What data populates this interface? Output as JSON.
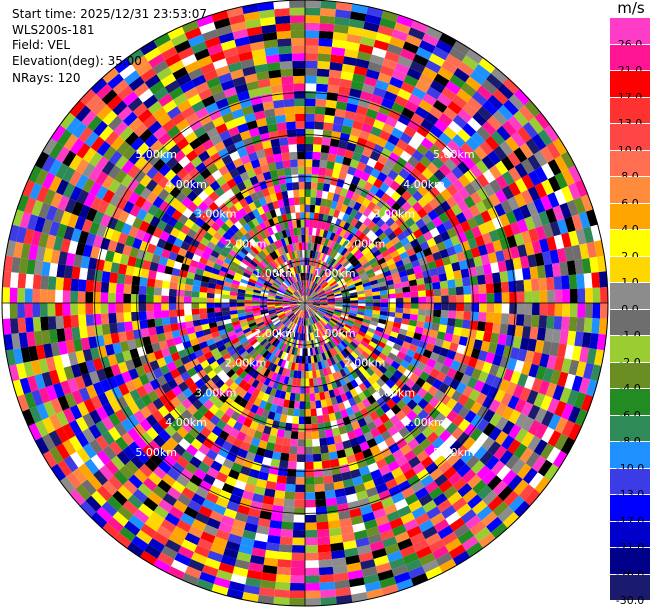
{
  "header": {
    "start_time": "Start time: 2025/12/31 23:53:07",
    "station": "WLS200s-181",
    "field": "Field: VEL",
    "elevation": "Elevation(deg): 35.00",
    "nrays": "NRays: 120"
  },
  "colorbar": {
    "unit": "m/s",
    "bins": [
      {
        "label": "26.0",
        "color": "#FF3CC8"
      },
      {
        "label": "21.0",
        "color": "#FF1493"
      },
      {
        "label": "17.0",
        "color": "#FF0000"
      },
      {
        "label": "13.0",
        "color": "#FF3232"
      },
      {
        "label": "10.0",
        "color": "#FF4646"
      },
      {
        "label": "8.0",
        "color": "#FF6E50"
      },
      {
        "label": "6.0",
        "color": "#FF8C3C"
      },
      {
        "label": "4.0",
        "color": "#FFA500"
      },
      {
        "label": "2.0",
        "color": "#FFFF00"
      },
      {
        "label": "1.0",
        "color": "#FFD700"
      },
      {
        "label": "0.0",
        "color": "#8C8C8C"
      },
      {
        "label": "-1.0",
        "color": "#6E6E6E"
      },
      {
        "label": "-2.0",
        "color": "#9ACD32"
      },
      {
        "label": "-4.0",
        "color": "#6B8E23"
      },
      {
        "label": "-6.0",
        "color": "#228B22"
      },
      {
        "label": "-8.0",
        "color": "#2E8B57"
      },
      {
        "label": "-10.0",
        "color": "#1E90FF"
      },
      {
        "label": "-13.0",
        "color": "#3C3CE6"
      },
      {
        "label": "-17.0",
        "color": "#0000FF"
      },
      {
        "label": "-21.0",
        "color": "#0000CD"
      },
      {
        "label": "-26.0",
        "color": "#00008B"
      },
      {
        "label": "-30.0",
        "color": "#1A1A6E"
      }
    ]
  },
  "chart_data": {
    "type": "heatmap",
    "subtype": "polar-ppi",
    "field": "VEL",
    "n_rays": 120,
    "elevation_deg": 35.0,
    "value_range": [
      -30,
      30
    ],
    "range_rings_km": [
      {
        "km": 1.0,
        "label": "1.00km"
      },
      {
        "km": 2.0,
        "label": "2.00km"
      },
      {
        "km": 3.0,
        "label": "3.00km"
      },
      {
        "km": 4.0,
        "label": "4.00km"
      },
      {
        "km": 5.0,
        "label": "5.00km"
      }
    ],
    "max_range_km": 7.2,
    "ring_label_angles_deg": [
      45,
      135,
      225,
      315
    ]
  }
}
